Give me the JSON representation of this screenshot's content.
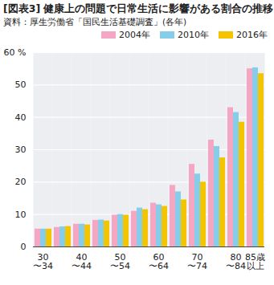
{
  "chart_data": {
    "type": "bar",
    "title": "[図表3] 健康上の問題で日常生活に影響がある割合の推移",
    "subtitle": "資料：厚生労働省「国民生活基礎調査」(各年)",
    "categories": [
      "30\n〜34",
      null,
      "40\n〜44",
      null,
      "50\n〜54",
      null,
      "60\n〜64",
      null,
      "70\n〜74",
      null,
      "80\n〜84",
      "85歳\n以上"
    ],
    "series": [
      {
        "name": "2004年",
        "color": "#f4a6c2",
        "values": [
          5.5,
          6.0,
          7.0,
          8.2,
          9.8,
          11.0,
          13.5,
          19.0,
          25.5,
          33.0,
          43.0,
          55.0
        ]
      },
      {
        "name": "2010年",
        "color": "#86cde9",
        "values": [
          5.5,
          6.2,
          7.0,
          8.3,
          10.0,
          12.0,
          13.0,
          17.0,
          22.5,
          31.0,
          41.5,
          55.3
        ]
      },
      {
        "name": "2016年",
        "color": "#f5c400",
        "values": [
          5.5,
          6.3,
          6.8,
          8.0,
          9.8,
          11.5,
          12.5,
          14.5,
          20.0,
          27.5,
          38.5,
          53.5
        ]
      }
    ],
    "ylim": [
      0,
      60
    ],
    "yticks": [
      0,
      10,
      20,
      30,
      40,
      50,
      {
        "value": 60,
        "label": "60 %"
      }
    ],
    "grid": true,
    "legend": "top"
  }
}
